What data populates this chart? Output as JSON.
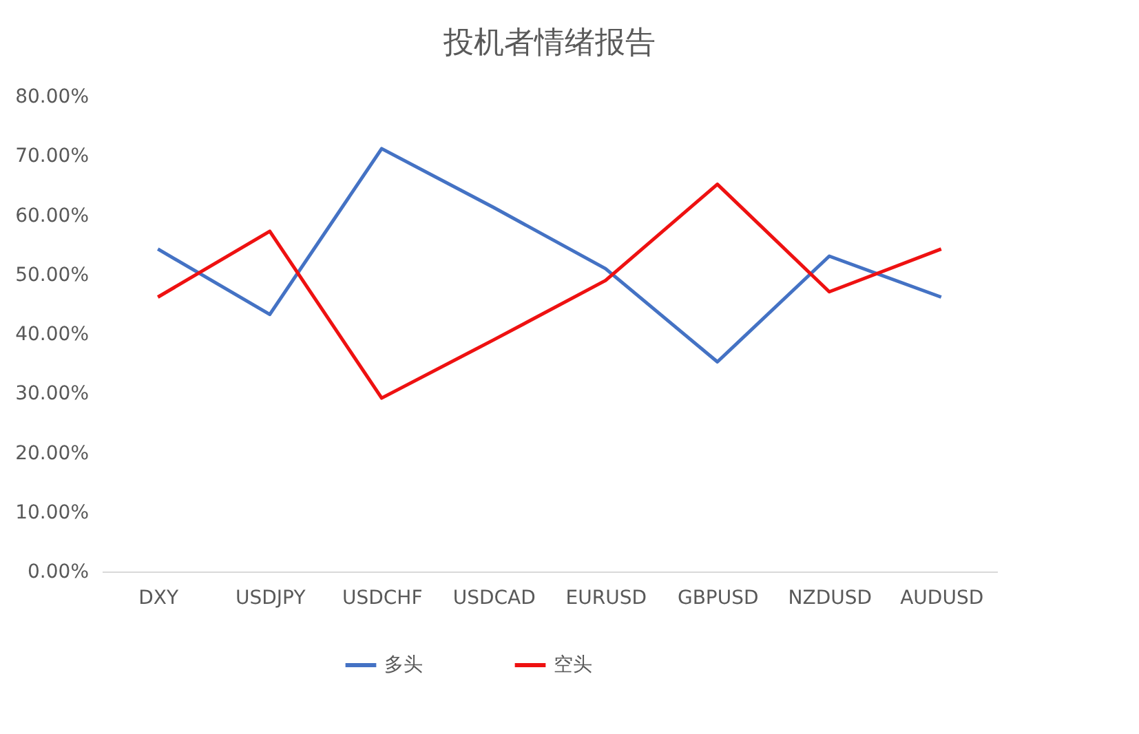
{
  "chart_data": {
    "type": "line",
    "title": "投机者情绪报告",
    "categories": [
      "DXY",
      "USDJPY",
      "USDCHF",
      "USDCAD",
      "EURUSD",
      "GBPUSD",
      "NZDUSD",
      "AUDUSD"
    ],
    "series": [
      {
        "name": "多头",
        "color": "#4472c4",
        "values": [
          54.3,
          43.3,
          71.2,
          61.3,
          51,
          35.3,
          53.1,
          46.2
        ]
      },
      {
        "name": "空头",
        "color": "#ee1111",
        "values": [
          46.2,
          57.3,
          29.2,
          39,
          49,
          65.2,
          47.1,
          54.3
        ]
      }
    ],
    "ylim": [
      0,
      80
    ],
    "yticks": [
      {
        "value": 0,
        "label": "0.00%"
      },
      {
        "value": 10,
        "label": "10.00%"
      },
      {
        "value": 20,
        "label": "20.00%"
      },
      {
        "value": 30,
        "label": "30.00%"
      },
      {
        "value": 40,
        "label": "40.00%"
      },
      {
        "value": 50,
        "label": "50.00%"
      },
      {
        "value": 60,
        "label": "60.00%"
      },
      {
        "value": 70,
        "label": "70.00%"
      },
      {
        "value": 80,
        "label": "80.00%"
      }
    ],
    "grid": false,
    "legend": "bottom",
    "marker": "none",
    "line_style": "solid"
  }
}
